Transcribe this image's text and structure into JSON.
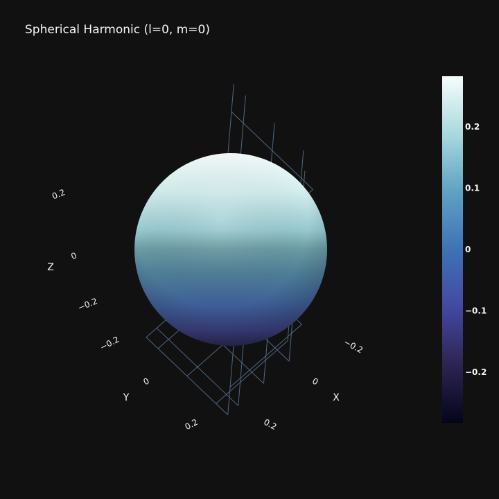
{
  "chart_data": {
    "type": "surface",
    "title": "Spherical Harmonic (l=0, m=0)",
    "surface": "sphere",
    "radius": 0.2821,
    "color_value_range": [
      -0.2821,
      0.2821
    ],
    "colorscale": [
      "#04051a",
      "#2d2552",
      "#4348a0",
      "#3e73b4",
      "#5fa3c4",
      "#a7d8dc",
      "#f7fdfd"
    ],
    "axes": {
      "x": {
        "title": "X",
        "ticks": [
          -0.2,
          0,
          0.2
        ],
        "tick_labels": [
          "−0.2",
          "0",
          "0.2"
        ]
      },
      "y": {
        "title": "Y",
        "ticks": [
          -0.2,
          0,
          0.2
        ],
        "tick_labels": [
          "−0.2",
          "0",
          "0.2"
        ]
      },
      "z": {
        "title": "Z",
        "ticks": [
          -0.2,
          0,
          0.2
        ],
        "tick_labels": [
          "−0.2",
          "0",
          "0.2"
        ]
      }
    },
    "colorbar": {
      "range": [
        -0.2821,
        0.2821
      ],
      "ticks": [
        0.2,
        0.1,
        0,
        -0.1,
        -0.2
      ],
      "tick_labels": [
        "0.2",
        "0.1",
        "0",
        "−0.1",
        "−0.2"
      ]
    },
    "grid": true,
    "background": "#111111",
    "grid_color": "#506784"
  }
}
